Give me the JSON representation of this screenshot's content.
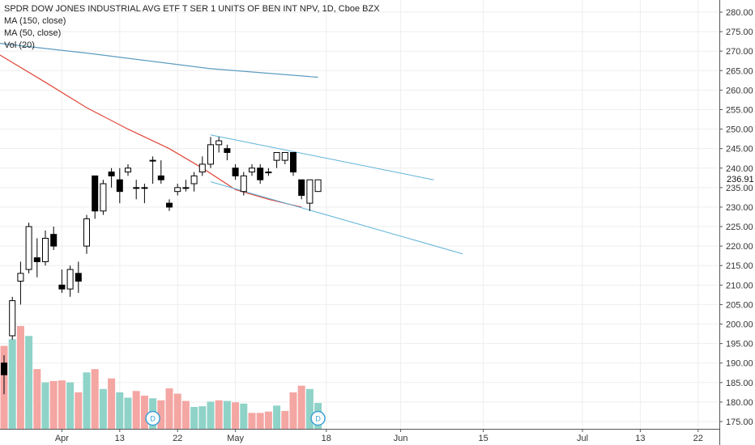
{
  "legend": {
    "title": "SPDR DOW JONES INDUSTRIAL AVG ETF T SER 1 UNITS OF BEN INT NPV, 1D, Cboe BZX",
    "ma150": "MA (150, close)",
    "ma50": "MA (50, close)",
    "vol": "Vol (20)"
  },
  "current_price_label": "236.91",
  "colors": {
    "up_candle_fill": "#ffffff",
    "down_candle_fill": "#000000",
    "candle_stroke": "#000000",
    "vol_up": "#8fd3c8",
    "vol_down": "#f4a6a3",
    "ma150": "#5c9cc1",
    "ma50": "#e0473a",
    "trendline": "#5fb3d9",
    "grid": "#eeeeee",
    "axis": "#555555",
    "dividend_badge": "#3aa0d6"
  },
  "chart_data": {
    "type": "candlestick",
    "ylim": [
      172,
      283
    ],
    "yticks": [
      "280.00",
      "275.00",
      "270.00",
      "265.00",
      "260.00",
      "255.00",
      "250.00",
      "245.00",
      "240.00",
      "235.00",
      "230.00",
      "225.00",
      "220.00",
      "215.00",
      "210.00",
      "205.00",
      "200.00",
      "195.00",
      "190.00",
      "185.00",
      "180.00",
      "175.00"
    ],
    "xticks": [
      {
        "label": "Apr",
        "i": 7
      },
      {
        "label": "13",
        "i": 14
      },
      {
        "label": "22",
        "i": 21
      },
      {
        "label": "May",
        "i": 28
      },
      {
        "label": "18",
        "i": 39
      },
      {
        "label": "Jun",
        "i": 48
      },
      {
        "label": "15",
        "i": 58
      },
      {
        "label": "Jul",
        "i": 70
      },
      {
        "label": "13",
        "i": 77
      },
      {
        "label": "22",
        "i": 84
      }
    ],
    "candles": [
      {
        "i": 0,
        "o": 190,
        "h": 192,
        "l": 182,
        "c": 187
      },
      {
        "i": 1,
        "o": 197,
        "h": 207,
        "l": 196,
        "c": 206
      },
      {
        "i": 2,
        "o": 211,
        "h": 216,
        "l": 205,
        "c": 213
      },
      {
        "i": 3,
        "o": 214,
        "h": 226,
        "l": 213,
        "c": 225
      },
      {
        "i": 4,
        "o": 217,
        "h": 222,
        "l": 212,
        "c": 216
      },
      {
        "i": 5,
        "o": 216,
        "h": 224,
        "l": 215,
        "c": 222
      },
      {
        "i": 6,
        "o": 223,
        "h": 225,
        "l": 219,
        "c": 220
      },
      {
        "i": 7,
        "o": 210,
        "h": 214,
        "l": 208,
        "c": 209
      },
      {
        "i": 8,
        "o": 209,
        "h": 215,
        "l": 207,
        "c": 214
      },
      {
        "i": 9,
        "o": 213,
        "h": 216,
        "l": 208,
        "c": 211
      },
      {
        "i": 10,
        "o": 220,
        "h": 228,
        "l": 218,
        "c": 227
      },
      {
        "i": 11,
        "o": 238,
        "h": 238,
        "l": 227,
        "c": 229
      },
      {
        "i": 12,
        "o": 229,
        "h": 237,
        "l": 228,
        "c": 236
      },
      {
        "i": 13,
        "o": 239,
        "h": 240,
        "l": 235,
        "c": 238
      },
      {
        "i": 14,
        "o": 237,
        "h": 240,
        "l": 231,
        "c": 234
      },
      {
        "i": 15,
        "o": 239,
        "h": 241,
        "l": 238,
        "c": 240
      },
      {
        "i": 16,
        "o": 235,
        "h": 237,
        "l": 232,
        "c": 235
      },
      {
        "i": 17,
        "o": 235,
        "h": 236,
        "l": 231,
        "c": 235
      },
      {
        "i": 18,
        "o": 242,
        "h": 243,
        "l": 236,
        "c": 242
      },
      {
        "i": 19,
        "o": 238,
        "h": 242,
        "l": 236,
        "c": 237
      },
      {
        "i": 20,
        "o": 231,
        "h": 232,
        "l": 229,
        "c": 230
      },
      {
        "i": 21,
        "o": 234,
        "h": 236,
        "l": 233,
        "c": 235
      },
      {
        "i": 22,
        "o": 235,
        "h": 237,
        "l": 234,
        "c": 235
      },
      {
        "i": 23,
        "o": 236,
        "h": 239,
        "l": 234,
        "c": 238
      },
      {
        "i": 24,
        "o": 239,
        "h": 243,
        "l": 238,
        "c": 241
      },
      {
        "i": 25,
        "o": 241,
        "h": 248,
        "l": 240,
        "c": 246
      },
      {
        "i": 26,
        "o": 246,
        "h": 248,
        "l": 244,
        "c": 247
      },
      {
        "i": 27,
        "o": 245,
        "h": 246,
        "l": 242,
        "c": 244
      },
      {
        "i": 28,
        "o": 240,
        "h": 241,
        "l": 237,
        "c": 238
      },
      {
        "i": 29,
        "o": 234,
        "h": 239,
        "l": 233,
        "c": 238
      },
      {
        "i": 30,
        "o": 239,
        "h": 241,
        "l": 238,
        "c": 240
      },
      {
        "i": 31,
        "o": 240,
        "h": 241,
        "l": 236,
        "c": 237
      },
      {
        "i": 32,
        "o": 239,
        "h": 240,
        "l": 238,
        "c": 239
      },
      {
        "i": 33,
        "o": 242,
        "h": 244,
        "l": 240,
        "c": 244
      },
      {
        "i": 34,
        "o": 242,
        "h": 244,
        "l": 241,
        "c": 244
      },
      {
        "i": 35,
        "o": 244,
        "h": 244,
        "l": 238,
        "c": 239
      },
      {
        "i": 36,
        "o": 237,
        "h": 237,
        "l": 232,
        "c": 233
      },
      {
        "i": 37,
        "o": 231,
        "h": 237,
        "l": 229,
        "c": 237
      },
      {
        "i": 38,
        "o": 234,
        "h": 237,
        "l": 234,
        "c": 237
      }
    ],
    "volume": {
      "ylim": [
        0,
        16
      ],
      "bars": [
        {
          "i": 0,
          "v": 12.5,
          "dir": "down"
        },
        {
          "i": 1,
          "v": 13.5,
          "dir": "up"
        },
        {
          "i": 2,
          "v": 15.5,
          "dir": "down"
        },
        {
          "i": 3,
          "v": 14,
          "dir": "up"
        },
        {
          "i": 4,
          "v": 9,
          "dir": "down"
        },
        {
          "i": 5,
          "v": 7,
          "dir": "up"
        },
        {
          "i": 6,
          "v": 7.2,
          "dir": "down"
        },
        {
          "i": 7,
          "v": 7.3,
          "dir": "down"
        },
        {
          "i": 8,
          "v": 7,
          "dir": "up"
        },
        {
          "i": 9,
          "v": 5.5,
          "dir": "down"
        },
        {
          "i": 10,
          "v": 8.5,
          "dir": "up"
        },
        {
          "i": 11,
          "v": 9,
          "dir": "down"
        },
        {
          "i": 12,
          "v": 6,
          "dir": "up"
        },
        {
          "i": 13,
          "v": 7.6,
          "dir": "down"
        },
        {
          "i": 14,
          "v": 5.5,
          "dir": "up"
        },
        {
          "i": 15,
          "v": 4.7,
          "dir": "up"
        },
        {
          "i": 16,
          "v": 5.7,
          "dir": "down"
        },
        {
          "i": 17,
          "v": 5,
          "dir": "down"
        },
        {
          "i": 18,
          "v": 4.6,
          "dir": "up"
        },
        {
          "i": 19,
          "v": 4.3,
          "dir": "down"
        },
        {
          "i": 20,
          "v": 6.1,
          "dir": "down"
        },
        {
          "i": 21,
          "v": 5.3,
          "dir": "down"
        },
        {
          "i": 22,
          "v": 4.2,
          "dir": "down"
        },
        {
          "i": 23,
          "v": 3.3,
          "dir": "up"
        },
        {
          "i": 24,
          "v": 3.4,
          "dir": "up"
        },
        {
          "i": 25,
          "v": 4.1,
          "dir": "up"
        },
        {
          "i": 26,
          "v": 4.3,
          "dir": "down"
        },
        {
          "i": 27,
          "v": 4.2,
          "dir": "up"
        },
        {
          "i": 28,
          "v": 4,
          "dir": "down"
        },
        {
          "i": 29,
          "v": 3.8,
          "dir": "up"
        },
        {
          "i": 30,
          "v": 2.4,
          "dir": "down"
        },
        {
          "i": 31,
          "v": 2.4,
          "dir": "down"
        },
        {
          "i": 32,
          "v": 2.6,
          "dir": "down"
        },
        {
          "i": 33,
          "v": 3.5,
          "dir": "up"
        },
        {
          "i": 34,
          "v": 2.7,
          "dir": "down"
        },
        {
          "i": 35,
          "v": 5.5,
          "dir": "down"
        },
        {
          "i": 36,
          "v": 6.5,
          "dir": "down"
        },
        {
          "i": 37,
          "v": 6,
          "dir": "up"
        },
        {
          "i": 38,
          "v": 3.9,
          "dir": "up"
        }
      ]
    },
    "ma150": [
      {
        "i": -0.5,
        "v": 272
      },
      {
        "i": 10,
        "v": 269.5
      },
      {
        "i": 25,
        "v": 265.5
      },
      {
        "i": 38,
        "v": 263.3
      }
    ],
    "ma50": [
      {
        "i": -0.5,
        "v": 269
      },
      {
        "i": 5,
        "v": 262
      },
      {
        "i": 10,
        "v": 255.5
      },
      {
        "i": 15,
        "v": 250
      },
      {
        "i": 20,
        "v": 245
      },
      {
        "i": 24,
        "v": 240
      },
      {
        "i": 28,
        "v": 234.5
      },
      {
        "i": 32,
        "v": 232
      },
      {
        "i": 36,
        "v": 230
      }
    ],
    "trendlines": [
      {
        "from": {
          "i": 25,
          "v": 248.5
        },
        "to": {
          "i": 52,
          "v": 237
        }
      },
      {
        "from": {
          "i": 25,
          "v": 236.5
        },
        "to": {
          "i": 55.5,
          "v": 218
        }
      }
    ],
    "dividend_markers": [
      {
        "i": 18,
        "label": "D"
      },
      {
        "i": 38,
        "label": "D"
      }
    ]
  }
}
